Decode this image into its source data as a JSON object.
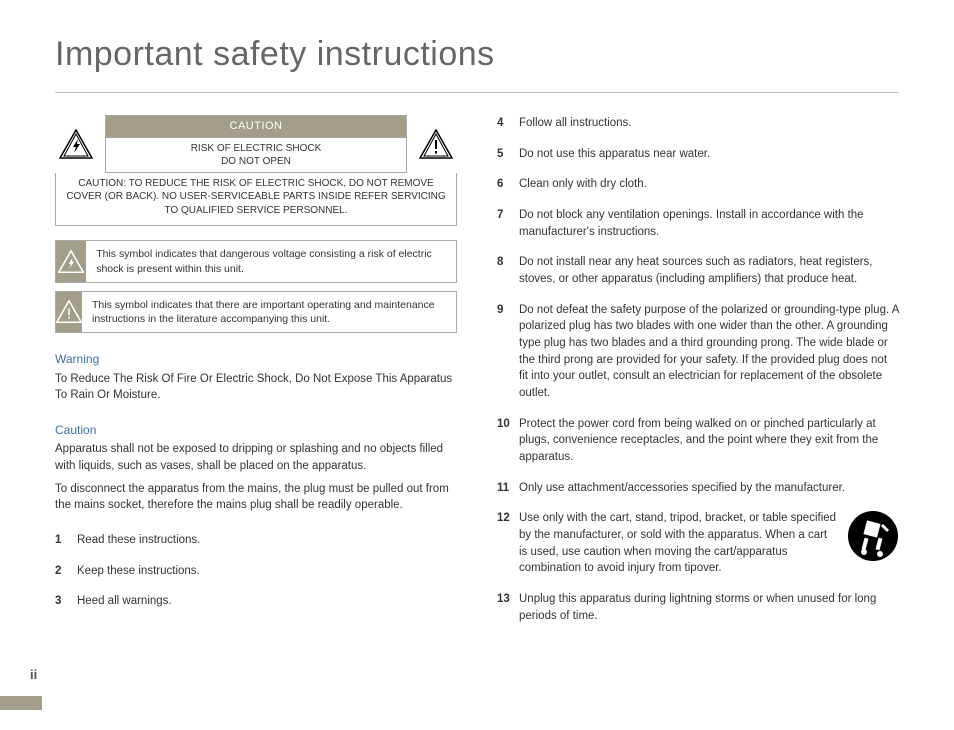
{
  "title": "Important safety instructions",
  "cautionBox": {
    "header": "CAUTION",
    "sub": "RISK OF ELECTRIC SHOCK\nDO NOT OPEN",
    "text": "CAUTION: TO REDUCE THE RISK OF ELECTRIC SHOCK, DO NOT REMOVE COVER (OR BACK). NO USER-SERVICEABLE PARTS INSIDE REFER SERVICING TO QUALIFIED SERVICE PERSONNEL."
  },
  "symbolNotes": {
    "shock": "This symbol indicates that dangerous voltage consisting a risk of electric shock is present within this unit.",
    "warn": "This symbol indicates that there are important operating and maintenance instructions in the literature accompanying this unit."
  },
  "warning": {
    "heading": "Warning",
    "text": "To Reduce The Risk Of Fire Or Electric Shock, Do Not Expose This Apparatus To Rain Or Moisture."
  },
  "caution": {
    "heading": "Caution",
    "text1": "Apparatus shall not be exposed to dripping or splashing and no objects filled with liquids, such as vases, shall be placed on the apparatus.",
    "text2": "To disconnect the apparatus from the mains, the plug must be pulled out from the mains socket, therefore the mains plug shall be readily operable."
  },
  "listLeft": [
    {
      "n": "1",
      "t": "Read these instructions."
    },
    {
      "n": "2",
      "t": "Keep these instructions."
    },
    {
      "n": "3",
      "t": "Heed all warnings."
    }
  ],
  "listRight": [
    {
      "n": "4",
      "t": "Follow all instructions."
    },
    {
      "n": "5",
      "t": "Do not use this apparatus near water."
    },
    {
      "n": "6",
      "t": "Clean only with dry cloth."
    },
    {
      "n": "7",
      "t": "Do not block any ventilation openings. Install in accordance with the manufacturer's instructions."
    },
    {
      "n": "8",
      "t": "Do not install near any heat sources such as radiators, heat registers, stoves, or other apparatus (including amplifiers) that produce heat."
    },
    {
      "n": "9",
      "t": "Do not defeat the safety purpose of the polarized or grounding-type plug. A polarized plug has two blades with one wider than the other. A grounding type plug has two blades and a third grounding prong. The wide blade or the third prong are provided for your safety. If the provided plug does not fit into your outlet, consult an electrician for replacement of the obsolete outlet."
    },
    {
      "n": "10",
      "t": "Protect the power cord from being walked on or pinched particularly at plugs, convenience receptacles, and the point where they exit from the apparatus."
    },
    {
      "n": "11",
      "t": "Only use attachment/accessories specified by the manufacturer."
    },
    {
      "n": "12",
      "t": "Use only with the cart, stand, tripod, bracket, or table specified by the manufacturer, or sold with the apparatus. When a cart is used, use caution when moving the cart/apparatus combination to avoid injury from tipover."
    },
    {
      "n": "13",
      "t": "Unplug this apparatus during lightning storms or when unused for long periods of time."
    }
  ],
  "pageNumber": "ii",
  "colors": {
    "accent": "#a29e89",
    "linkBlue": "#3a6ea5"
  }
}
